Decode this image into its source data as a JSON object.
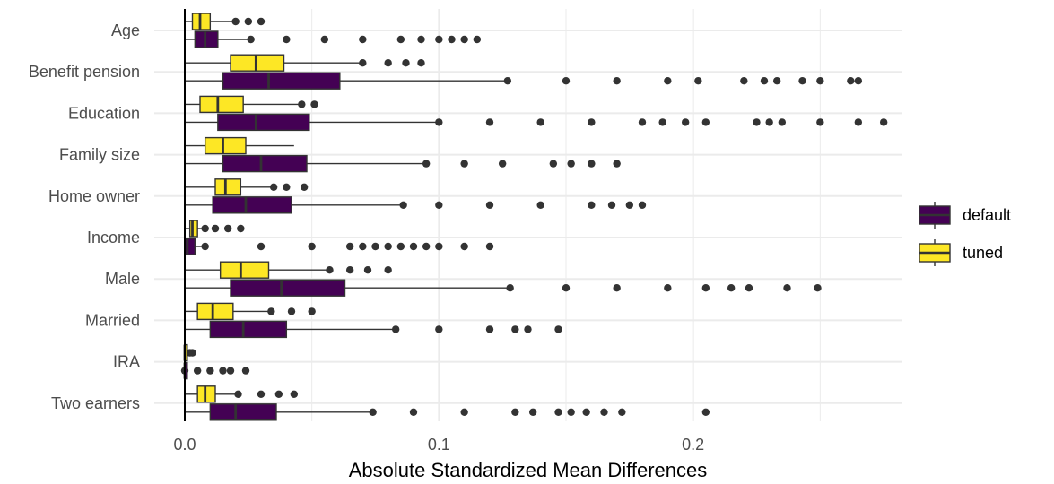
{
  "chart_data": {
    "type": "boxplot",
    "orientation": "horizontal",
    "xlabel": "Absolute Standardized Mean Differences",
    "ylabel": "",
    "xlim": [
      -0.012,
      0.282
    ],
    "x_ticks": [
      0.0,
      0.1,
      0.2
    ],
    "x_tick_labels": [
      "0.0",
      "0.1",
      "0.2"
    ],
    "grid": true,
    "legend_position": "right",
    "categories": [
      "Age",
      "Benefit pension",
      "Education",
      "Family size",
      "Home owner",
      "Income",
      "Male",
      "Married",
      "IRA",
      "Two earners"
    ],
    "series": [
      {
        "name": "default",
        "color": "#440154",
        "boxes": [
          {
            "category": "Age",
            "whisker_low": 0.0,
            "q1": 0.004,
            "median": 0.008,
            "q3": 0.013,
            "whisker_high": 0.026,
            "outliers": [
              0.026,
              0.04,
              0.055,
              0.07,
              0.085,
              0.093,
              0.1,
              0.105,
              0.11,
              0.115
            ]
          },
          {
            "category": "Benefit pension",
            "whisker_low": 0.0,
            "q1": 0.015,
            "median": 0.033,
            "q3": 0.061,
            "whisker_high": 0.127,
            "outliers": [
              0.127,
              0.15,
              0.17,
              0.19,
              0.202,
              0.22,
              0.228,
              0.233,
              0.243,
              0.25,
              0.262,
              0.265
            ]
          },
          {
            "category": "Education",
            "whisker_low": 0.0,
            "q1": 0.013,
            "median": 0.028,
            "q3": 0.049,
            "whisker_high": 0.1,
            "outliers": [
              0.1,
              0.12,
              0.14,
              0.16,
              0.18,
              0.188,
              0.197,
              0.205,
              0.225,
              0.23,
              0.235,
              0.25,
              0.265,
              0.275
            ]
          },
          {
            "category": "Family size",
            "whisker_low": 0.0,
            "q1": 0.015,
            "median": 0.03,
            "q3": 0.048,
            "whisker_high": 0.095,
            "outliers": [
              0.095,
              0.11,
              0.125,
              0.145,
              0.152,
              0.16,
              0.17
            ]
          },
          {
            "category": "Home owner",
            "whisker_low": 0.0,
            "q1": 0.011,
            "median": 0.024,
            "q3": 0.042,
            "whisker_high": 0.086,
            "outliers": [
              0.086,
              0.1,
              0.12,
              0.14,
              0.16,
              0.168,
              0.175,
              0.18
            ]
          },
          {
            "category": "Income",
            "whisker_low": 0.0,
            "q1": 0.0,
            "median": 0.001,
            "q3": 0.004,
            "whisker_high": 0.008,
            "outliers": [
              0.008,
              0.03,
              0.05,
              0.065,
              0.07,
              0.075,
              0.08,
              0.085,
              0.09,
              0.095,
              0.1,
              0.11,
              0.12
            ]
          },
          {
            "category": "Male",
            "whisker_low": 0.0,
            "q1": 0.018,
            "median": 0.038,
            "q3": 0.063,
            "whisker_high": 0.128,
            "outliers": [
              0.128,
              0.15,
              0.17,
              0.19,
              0.205,
              0.215,
              0.222,
              0.237,
              0.249
            ]
          },
          {
            "category": "Married",
            "whisker_low": 0.0,
            "q1": 0.01,
            "median": 0.023,
            "q3": 0.04,
            "whisker_high": 0.083,
            "outliers": [
              0.083,
              0.1,
              0.12,
              0.13,
              0.135,
              0.147
            ]
          },
          {
            "category": "IRA",
            "whisker_low": 0.0,
            "q1": 0.0,
            "median": 0.0,
            "q3": 0.001,
            "whisker_high": 0.001,
            "outliers": [
              0.0,
              0.005,
              0.01,
              0.015,
              0.018,
              0.024
            ]
          },
          {
            "category": "Two earners",
            "whisker_low": 0.0,
            "q1": 0.01,
            "median": 0.02,
            "q3": 0.036,
            "whisker_high": 0.074,
            "outliers": [
              0.074,
              0.09,
              0.11,
              0.13,
              0.137,
              0.147,
              0.152,
              0.158,
              0.165,
              0.172,
              0.205
            ]
          }
        ]
      },
      {
        "name": "tuned",
        "color": "#FDE725",
        "boxes": [
          {
            "category": "Age",
            "whisker_low": 0.0,
            "q1": 0.003,
            "median": 0.006,
            "q3": 0.01,
            "whisker_high": 0.02,
            "outliers": [
              0.02,
              0.025,
              0.03
            ]
          },
          {
            "category": "Benefit pension",
            "whisker_low": 0.0,
            "q1": 0.018,
            "median": 0.028,
            "q3": 0.039,
            "whisker_high": 0.07,
            "outliers": [
              0.07,
              0.08,
              0.087,
              0.093
            ]
          },
          {
            "category": "Education",
            "whisker_low": 0.0,
            "q1": 0.006,
            "median": 0.013,
            "q3": 0.023,
            "whisker_high": 0.046,
            "outliers": [
              0.046,
              0.051
            ]
          },
          {
            "category": "Family size",
            "whisker_low": 0.0,
            "q1": 0.008,
            "median": 0.015,
            "q3": 0.024,
            "whisker_high": 0.043,
            "outliers": []
          },
          {
            "category": "Home owner",
            "whisker_low": 0.0,
            "q1": 0.012,
            "median": 0.016,
            "q3": 0.022,
            "whisker_high": 0.035,
            "outliers": [
              0.035,
              0.04,
              0.047
            ]
          },
          {
            "category": "Income",
            "whisker_low": 0.0,
            "q1": 0.002,
            "median": 0.003,
            "q3": 0.005,
            "whisker_high": 0.008,
            "outliers": [
              0.008,
              0.012,
              0.017,
              0.022
            ]
          },
          {
            "category": "Male",
            "whisker_low": 0.0,
            "q1": 0.014,
            "median": 0.022,
            "q3": 0.033,
            "whisker_high": 0.057,
            "outliers": [
              0.057,
              0.065,
              0.072,
              0.08
            ]
          },
          {
            "category": "Married",
            "whisker_low": 0.0,
            "q1": 0.005,
            "median": 0.011,
            "q3": 0.019,
            "whisker_high": 0.034,
            "outliers": [
              0.034,
              0.042,
              0.05
            ]
          },
          {
            "category": "IRA",
            "whisker_low": 0.0,
            "q1": 0.0,
            "median": 0.0,
            "q3": 0.001,
            "whisker_high": 0.001,
            "outliers": [
              0.002,
              0.003
            ]
          },
          {
            "category": "Two earners",
            "whisker_low": 0.0,
            "q1": 0.005,
            "median": 0.008,
            "q3": 0.012,
            "whisker_high": 0.021,
            "outliers": [
              0.021,
              0.03,
              0.037,
              0.043
            ]
          }
        ]
      }
    ]
  }
}
